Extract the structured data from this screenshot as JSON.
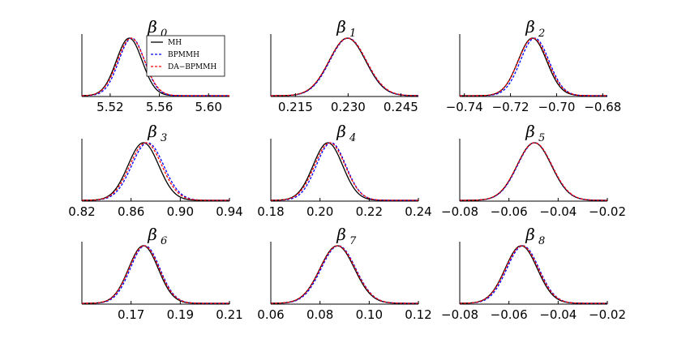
{
  "chart_data": [
    {
      "type": "line",
      "title": {
        "symbol": "β",
        "sub": "0"
      },
      "xlim": [
        5.497,
        5.617
      ],
      "xticks": [
        "5.52",
        "5.56",
        "5.60"
      ],
      "xtick_values": [
        5.52,
        5.56,
        5.6
      ],
      "grid": false,
      "legend": "top-right",
      "series": [
        {
          "name": "MH",
          "color": "#000000",
          "dash": "solid",
          "mean": 5.5355,
          "sd": 0.0105
        },
        {
          "name": "BPMMH",
          "color": "#0000ff",
          "dash": "dashed",
          "mean": 5.5375,
          "sd": 0.0105
        },
        {
          "name": "DA−BPMMH",
          "color": "#ff0000",
          "dash": "dashed",
          "mean": 5.537,
          "sd": 0.011
        }
      ]
    },
    {
      "type": "line",
      "title": {
        "symbol": "β",
        "sub": "1"
      },
      "xlim": [
        0.208,
        0.25
      ],
      "xticks": [
        "0.215",
        "0.230",
        "0.245"
      ],
      "xtick_values": [
        0.215,
        0.23,
        0.245
      ],
      "grid": false,
      "series": [
        {
          "name": "MH",
          "color": "#000000",
          "dash": "solid",
          "mean": 0.2298,
          "sd": 0.0052
        },
        {
          "name": "BPMMH",
          "color": "#0000ff",
          "dash": "dashed",
          "mean": 0.23,
          "sd": 0.0052
        },
        {
          "name": "DA−BPMMH",
          "color": "#ff0000",
          "dash": "dashed",
          "mean": 0.2299,
          "sd": 0.0053
        }
      ]
    },
    {
      "type": "line",
      "title": {
        "symbol": "β",
        "sub": "2"
      },
      "xlim": [
        -0.742,
        -0.678
      ],
      "xticks": [
        "−0.74",
        "−0.72",
        "−0.70",
        "−0.68"
      ],
      "xtick_values": [
        -0.74,
        -0.72,
        -0.7,
        -0.68
      ],
      "grid": false,
      "series": [
        {
          "name": "MH",
          "color": "#000000",
          "dash": "solid",
          "mean": -0.7105,
          "sd": 0.0062
        },
        {
          "name": "BPMMH",
          "color": "#0000ff",
          "dash": "dashed",
          "mean": -0.7095,
          "sd": 0.0062
        },
        {
          "name": "DA−BPMMH",
          "color": "#ff0000",
          "dash": "dashed",
          "mean": -0.7102,
          "sd": 0.0064
        }
      ]
    },
    {
      "type": "line",
      "title": {
        "symbol": "β",
        "sub": "3"
      },
      "xlim": [
        0.82,
        0.94
      ],
      "xticks": [
        "0.82",
        "0.86",
        "0.90",
        "0.94"
      ],
      "xtick_values": [
        0.82,
        0.86,
        0.9,
        0.94
      ],
      "grid": false,
      "series": [
        {
          "name": "MH",
          "color": "#000000",
          "dash": "solid",
          "mean": 0.87,
          "sd": 0.0125
        },
        {
          "name": "BPMMH",
          "color": "#0000ff",
          "dash": "dashed",
          "mean": 0.8735,
          "sd": 0.013
        },
        {
          "name": "DA−BPMMH",
          "color": "#ff0000",
          "dash": "dashed",
          "mean": 0.872,
          "sd": 0.013
        }
      ]
    },
    {
      "type": "line",
      "title": {
        "symbol": "β",
        "sub": "4"
      },
      "xlim": [
        0.18,
        0.24
      ],
      "xticks": [
        "0.18",
        "0.20",
        "0.22",
        "0.24"
      ],
      "xtick_values": [
        0.18,
        0.2,
        0.22,
        0.24
      ],
      "grid": false,
      "series": [
        {
          "name": "MH",
          "color": "#000000",
          "dash": "solid",
          "mean": 0.2032,
          "sd": 0.006
        },
        {
          "name": "BPMMH",
          "color": "#0000ff",
          "dash": "dashed",
          "mean": 0.2045,
          "sd": 0.006
        },
        {
          "name": "DA−BPMMH",
          "color": "#ff0000",
          "dash": "dashed",
          "mean": 0.204,
          "sd": 0.0062
        }
      ]
    },
    {
      "type": "line",
      "title": {
        "symbol": "β",
        "sub": "5"
      },
      "xlim": [
        -0.08,
        -0.02
      ],
      "xticks": [
        "−0.08",
        "−0.06",
        "−0.04",
        "−0.02"
      ],
      "xtick_values": [
        -0.08,
        -0.06,
        -0.04,
        -0.02
      ],
      "grid": false,
      "series": [
        {
          "name": "MH",
          "color": "#000000",
          "dash": "solid",
          "mean": -0.0497,
          "sd": 0.007
        },
        {
          "name": "BPMMH",
          "color": "#0000ff",
          "dash": "dashed",
          "mean": -0.0495,
          "sd": 0.007
        },
        {
          "name": "DA−BPMMH",
          "color": "#ff0000",
          "dash": "dashed",
          "mean": -0.0496,
          "sd": 0.0071
        }
      ]
    },
    {
      "type": "line",
      "title": {
        "symbol": "β",
        "sub": "6"
      },
      "xlim": [
        0.15,
        0.21
      ],
      "xticks": [
        "0.17",
        "0.19",
        "0.21"
      ],
      "xtick_values": [
        0.17,
        0.19,
        0.21
      ],
      "grid": false,
      "series": [
        {
          "name": "MH",
          "color": "#000000",
          "dash": "solid",
          "mean": 0.175,
          "sd": 0.006
        },
        {
          "name": "BPMMH",
          "color": "#0000ff",
          "dash": "dashed",
          "mean": 0.1757,
          "sd": 0.006
        },
        {
          "name": "DA−BPMMH",
          "color": "#ff0000",
          "dash": "dashed",
          "mean": 0.1753,
          "sd": 0.0061
        }
      ]
    },
    {
      "type": "line",
      "title": {
        "symbol": "β",
        "sub": "7"
      },
      "xlim": [
        0.06,
        0.12
      ],
      "xticks": [
        "0.06",
        "0.08",
        "0.10",
        "0.12"
      ],
      "xtick_values": [
        0.06,
        0.08,
        0.1,
        0.12
      ],
      "grid": false,
      "series": [
        {
          "name": "MH",
          "color": "#000000",
          "dash": "solid",
          "mean": 0.087,
          "sd": 0.007
        },
        {
          "name": "BPMMH",
          "color": "#0000ff",
          "dash": "dashed",
          "mean": 0.0875,
          "sd": 0.007
        },
        {
          "name": "DA−BPMMH",
          "color": "#ff0000",
          "dash": "dashed",
          "mean": 0.0872,
          "sd": 0.0071
        }
      ]
    },
    {
      "type": "line",
      "title": {
        "symbol": "β",
        "sub": "8"
      },
      "xlim": [
        -0.08,
        -0.02
      ],
      "xticks": [
        "−0.08",
        "−0.06",
        "−0.04",
        "−0.02"
      ],
      "xtick_values": [
        -0.08,
        -0.06,
        -0.04,
        -0.02
      ],
      "grid": false,
      "series": [
        {
          "name": "MH",
          "color": "#000000",
          "dash": "solid",
          "mean": -0.055,
          "sd": 0.0065
        },
        {
          "name": "BPMMH",
          "color": "#0000ff",
          "dash": "dashed",
          "mean": -0.0543,
          "sd": 0.0065
        },
        {
          "name": "DA−BPMMH",
          "color": "#ff0000",
          "dash": "dashed",
          "mean": -0.0547,
          "sd": 0.0066
        }
      ]
    }
  ]
}
